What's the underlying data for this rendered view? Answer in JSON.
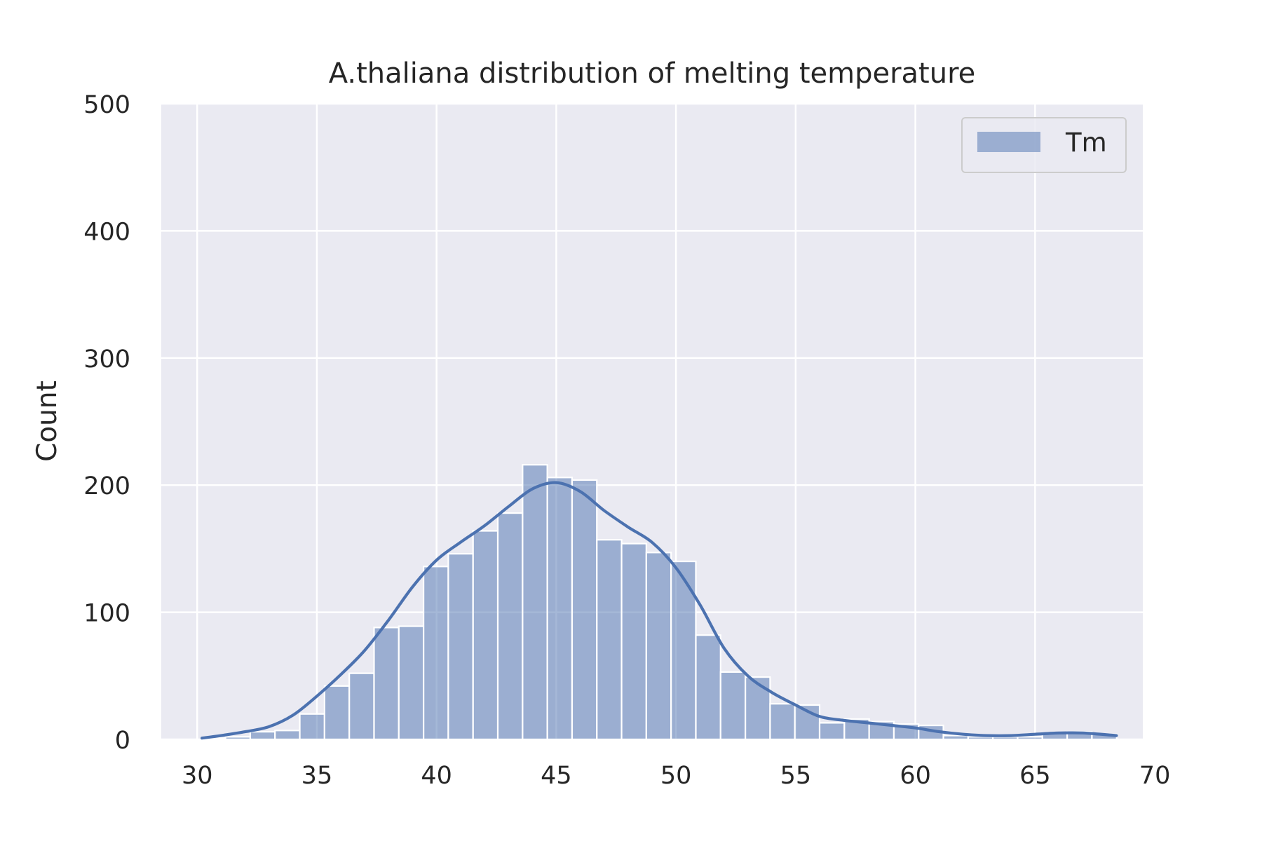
{
  "chart_data": {
    "type": "bar",
    "title": "A.thaliana distribution of melting temperature",
    "xlabel": "",
    "ylabel": "Count",
    "xlim": [
      28.5,
      69.5
    ],
    "ylim": [
      0,
      500
    ],
    "x_ticks": [
      30,
      35,
      40,
      45,
      50,
      55,
      60,
      65,
      70
    ],
    "y_ticks": [
      0,
      100,
      200,
      300,
      400,
      500
    ],
    "grid": true,
    "legend_position": "top-right",
    "bin_width": 1.034,
    "bin_edges_start": 30.15,
    "series": [
      {
        "name": "Tm",
        "color": "#4c72b0",
        "bar_alpha": 0.5,
        "values": [
          1,
          2,
          6,
          7,
          20,
          42,
          52,
          88,
          89,
          136,
          146,
          164,
          178,
          216,
          206,
          204,
          157,
          154,
          147,
          140,
          82,
          53,
          49,
          28,
          27,
          13,
          16,
          14,
          12,
          11,
          3,
          2,
          2,
          2,
          5,
          6,
          4
        ]
      }
    ],
    "kde": {
      "x": [
        30.2,
        31,
        32,
        33,
        34,
        35,
        36,
        37,
        38,
        39,
        40,
        41,
        42,
        43,
        44,
        45,
        46,
        47,
        48,
        49,
        50,
        51,
        52,
        53,
        54,
        55,
        56,
        57,
        58,
        59,
        60,
        61,
        62,
        63,
        64,
        65,
        66,
        67,
        68.4
      ],
      "y": [
        1,
        3,
        6,
        10,
        19,
        34,
        51,
        70,
        94,
        120,
        141,
        155,
        168,
        183,
        197,
        202,
        195,
        180,
        167,
        155,
        135,
        106,
        72,
        50,
        37,
        27,
        18,
        15,
        13,
        11,
        9,
        6,
        4,
        3,
        3,
        4,
        5,
        5,
        3
      ]
    }
  }
}
